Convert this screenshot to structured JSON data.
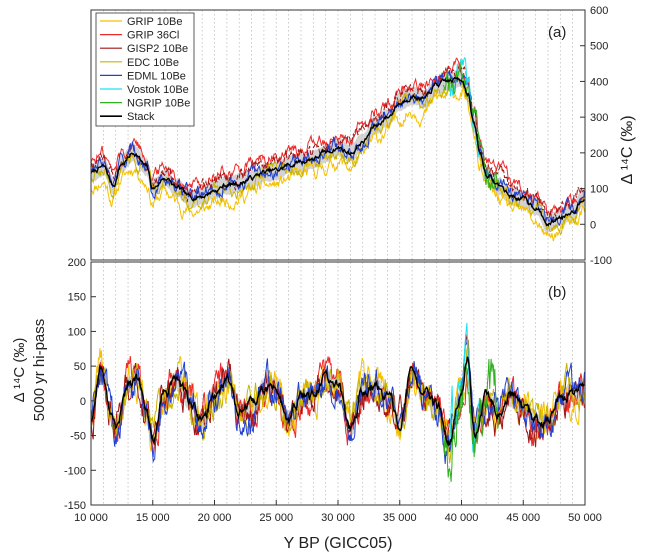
{
  "chart_data": [
    {
      "type": "line",
      "panel_label": "(a)",
      "ylabel_side": "right",
      "ylabel": "Δ ¹⁴C (‰)",
      "ylim": [
        -100,
        600
      ],
      "yticks": [
        -100,
        0,
        100,
        200,
        300,
        400,
        500,
        600
      ],
      "xlim": [
        10000,
        50000
      ],
      "legend": {
        "placement": "top-left",
        "entries": [
          {
            "name": "GRIP 10Be",
            "color": "#f5c000"
          },
          {
            "name": "GRIP 36Cl",
            "color": "#ee2a2a"
          },
          {
            "name": "GISP2 10Be",
            "color": "#a01515"
          },
          {
            "name": "EDC 10Be",
            "color": "#c8b400"
          },
          {
            "name": "EDML 10Be",
            "color": "#2040d0"
          },
          {
            "name": "Vostok 10Be",
            "color": "#20e0f0"
          },
          {
            "name": "NGRIP 10Be",
            "color": "#30b020"
          },
          {
            "name": "Stack",
            "color": "#000000"
          }
        ]
      },
      "stack_anchors": {
        "x": [
          10000,
          11000,
          11800,
          12500,
          13500,
          14500,
          15000,
          16000,
          17000,
          18000,
          19000,
          20000,
          21000,
          22000,
          23000,
          24000,
          25000,
          26000,
          27000,
          28000,
          29000,
          30000,
          31000,
          32000,
          33000,
          34000,
          35000,
          36000,
          37000,
          38000,
          39000,
          40000,
          40500,
          41000,
          41500,
          42000,
          43000,
          44000,
          45000,
          46000,
          47000,
          48000,
          49000,
          50000
        ],
        "y": [
          145,
          160,
          110,
          170,
          200,
          160,
          100,
          130,
          100,
          75,
          80,
          95,
          110,
          115,
          130,
          145,
          150,
          165,
          175,
          185,
          200,
          215,
          200,
          230,
          275,
          300,
          340,
          360,
          350,
          390,
          400,
          410,
          370,
          280,
          200,
          140,
          110,
          80,
          70,
          50,
          0,
          20,
          40,
          80
        ]
      },
      "series_offsets": [
        {
          "name": "GRIP 10Be",
          "offset": -40
        },
        {
          "name": "GRIP 36Cl",
          "offset": 35
        },
        {
          "name": "GISP2 10Be",
          "offset": 20
        },
        {
          "name": "EDC 10Be",
          "offset": -10
        },
        {
          "name": "EDML 10Be",
          "offset": 5
        },
        {
          "name": "Vostok 10Be",
          "offset": 15,
          "xrange": [
            39000,
            41500
          ]
        },
        {
          "name": "NGRIP 10Be",
          "offset": 5,
          "xrange": [
            38500,
            43000
          ]
        }
      ]
    },
    {
      "type": "line",
      "panel_label": "(b)",
      "ylabel_side": "left",
      "ylabel": "Δ ¹⁴C (‰)",
      "ylabel2": "5000 yr hi-pass",
      "ylim": [
        -150,
        200
      ],
      "yticks": [
        -150,
        -100,
        -50,
        0,
        50,
        100,
        150,
        200
      ],
      "xlim": [
        10000,
        50000
      ],
      "xticks": [
        10000,
        15000,
        20000,
        25000,
        30000,
        35000,
        40000,
        45000,
        50000
      ],
      "xticklabels": [
        "10 000",
        "15 000",
        "20 000",
        "25 000",
        "30 000",
        "35 000",
        "40 000",
        "45 000",
        "50 000"
      ],
      "xlabel": "Y BP (GICC05)",
      "stack_anchors": {
        "x": [
          10000,
          10800,
          11500,
          12000,
          13000,
          13800,
          14500,
          15000,
          16000,
          17000,
          18000,
          19000,
          20000,
          21000,
          22000,
          23000,
          24000,
          25000,
          26000,
          27000,
          28000,
          29000,
          30000,
          31000,
          32000,
          33000,
          34000,
          35000,
          36000,
          37000,
          38000,
          39000,
          40000,
          40500,
          41000,
          42000,
          43000,
          44000,
          45000,
          46000,
          47000,
          48000,
          49000,
          50000
        ],
        "y": [
          -25,
          50,
          -10,
          -40,
          20,
          30,
          -20,
          -55,
          10,
          30,
          0,
          -30,
          10,
          30,
          -10,
          -10,
          15,
          20,
          -30,
          5,
          10,
          30,
          20,
          -40,
          10,
          20,
          5,
          -30,
          40,
          10,
          -10,
          -60,
          10,
          60,
          -50,
          0,
          -15,
          5,
          -10,
          -30,
          -30,
          0,
          10,
          20
        ]
      }
    }
  ]
}
